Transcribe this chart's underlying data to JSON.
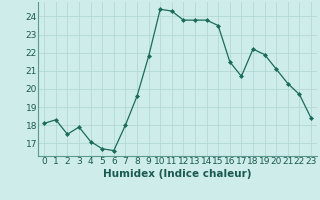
{
  "x": [
    0,
    1,
    2,
    3,
    4,
    5,
    6,
    7,
    8,
    9,
    10,
    11,
    12,
    13,
    14,
    15,
    16,
    17,
    18,
    19,
    20,
    21,
    22,
    23
  ],
  "y": [
    18.1,
    18.3,
    17.5,
    17.9,
    17.1,
    16.7,
    16.6,
    18.0,
    19.6,
    21.8,
    24.4,
    24.3,
    23.8,
    23.8,
    23.8,
    23.5,
    21.5,
    20.7,
    22.2,
    21.9,
    21.1,
    20.3,
    19.7,
    18.4
  ],
  "xlabel": "Humidex (Indice chaleur)",
  "ylabel_ticks": [
    17,
    18,
    19,
    20,
    21,
    22,
    23,
    24
  ],
  "ylim": [
    16.3,
    24.8
  ],
  "xlim": [
    -0.5,
    23.5
  ],
  "bg_color": "#ceecea",
  "grid_color": "#b2d8d5",
  "line_color": "#1a6b5a",
  "marker_color": "#1a6b5a",
  "xlabel_fontsize": 7.5,
  "tick_fontsize": 6.5
}
